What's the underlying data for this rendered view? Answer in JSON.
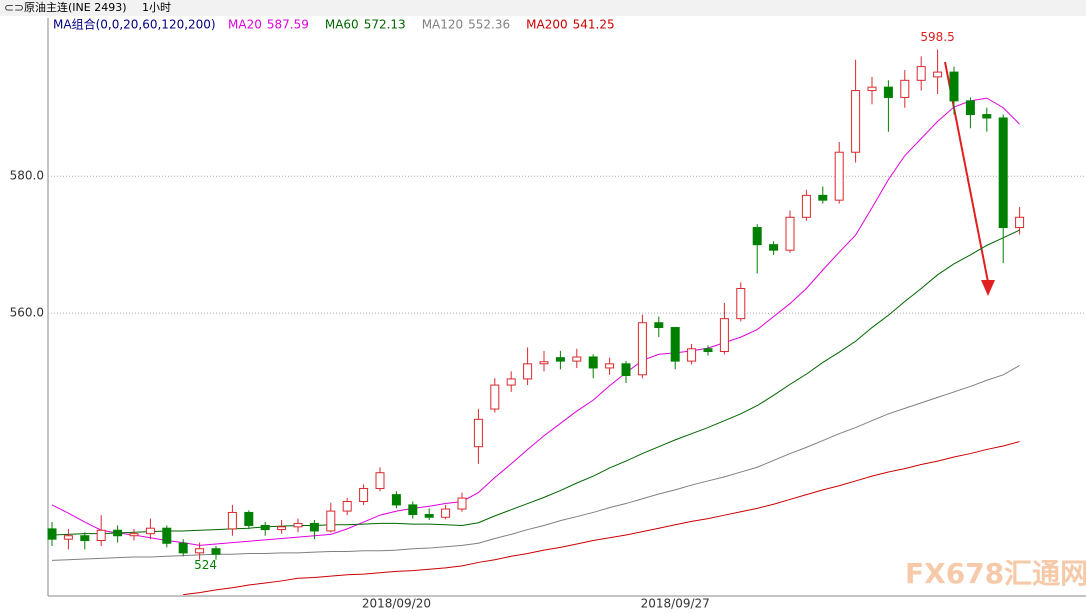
{
  "chart_data": {
    "type": "candlestick",
    "title": "原油主连(INE 2493)",
    "period": "1小时",
    "indicator": "MA组合(0,0,20,60,120,200)",
    "watermark": "FX678汇通网",
    "up_color": "#d9282e",
    "down_color": "#008000",
    "ylim": [
      518.7,
      603.1
    ],
    "yticks": [
      {
        "value": 560,
        "label": "560.0"
      },
      {
        "value": 580,
        "label": "580.0"
      }
    ],
    "grid": true,
    "categories": [
      null,
      null,
      null,
      null,
      null,
      null,
      null,
      null,
      null,
      null,
      null,
      null,
      null,
      null,
      null,
      null,
      null,
      null,
      null,
      null,
      null,
      "2018/09/20",
      null,
      null,
      null,
      null,
      null,
      null,
      null,
      null,
      null,
      null,
      null,
      null,
      null,
      null,
      null,
      null,
      "2018/09/27",
      null,
      null,
      null,
      null,
      null,
      null,
      null,
      null,
      null,
      null,
      null,
      null,
      null,
      null,
      null,
      null,
      null,
      null,
      null,
      null,
      null
    ],
    "candles": [
      [
        528.5,
        529.5,
        526.0,
        527.0
      ],
      [
        527.0,
        528.5,
        525.5,
        527.5
      ],
      [
        527.5,
        528.0,
        525.5,
        526.8
      ],
      [
        526.8,
        530.5,
        526.0,
        528.3
      ],
      [
        528.3,
        529.0,
        526.5,
        527.5
      ],
      [
        527.5,
        528.5,
        526.8,
        527.8
      ],
      [
        527.8,
        530.0,
        527.0,
        528.6
      ],
      [
        528.6,
        529.0,
        525.8,
        526.4
      ],
      [
        526.4,
        527.0,
        524.5,
        525.0
      ],
      [
        525.0,
        526.5,
        524.0,
        525.6
      ],
      [
        525.6,
        526.0,
        524.0,
        524.8
      ],
      [
        528.5,
        532.0,
        527.5,
        530.9
      ],
      [
        530.9,
        531.2,
        528.5,
        529.0
      ],
      [
        529.0,
        529.5,
        527.5,
        528.4
      ],
      [
        528.4,
        529.8,
        527.8,
        528.8
      ],
      [
        528.8,
        530.0,
        528.0,
        529.3
      ],
      [
        529.3,
        529.8,
        527.0,
        528.2
      ],
      [
        528.2,
        532.3,
        528.0,
        531.1
      ],
      [
        531.1,
        533.0,
        530.5,
        532.5
      ],
      [
        532.5,
        535.0,
        532.0,
        534.4
      ],
      [
        534.4,
        537.5,
        534.0,
        536.7
      ],
      [
        533.5,
        534.0,
        531.5,
        532.0
      ],
      [
        532.0,
        532.5,
        530.0,
        530.6
      ],
      [
        530.6,
        531.5,
        529.8,
        530.2
      ],
      [
        530.2,
        532.0,
        529.9,
        531.4
      ],
      [
        531.4,
        533.8,
        531.0,
        533.0
      ],
      [
        540.5,
        546.0,
        538.0,
        544.5
      ],
      [
        546.0,
        550.5,
        545.5,
        549.5
      ],
      [
        549.5,
        551.5,
        548.5,
        550.4
      ],
      [
        550.4,
        555.0,
        549.5,
        552.6
      ],
      [
        552.6,
        554.5,
        551.5,
        552.9
      ],
      [
        553.5,
        554.5,
        551.8,
        553.0
      ],
      [
        553.0,
        554.8,
        552.0,
        553.6
      ],
      [
        553.6,
        554.0,
        550.5,
        552.0
      ],
      [
        552.0,
        553.5,
        551.0,
        552.6
      ],
      [
        552.6,
        553.0,
        549.8,
        550.9
      ],
      [
        551.0,
        559.8,
        550.5,
        558.6
      ],
      [
        558.6,
        559.5,
        556.5,
        557.9
      ],
      [
        557.9,
        558.0,
        551.8,
        553.0
      ],
      [
        553.0,
        555.5,
        552.5,
        554.8
      ],
      [
        554.8,
        555.3,
        553.8,
        554.4
      ],
      [
        554.4,
        561.5,
        554.0,
        559.2
      ],
      [
        559.2,
        564.5,
        558.8,
        563.6
      ],
      [
        572.5,
        573.0,
        565.8,
        570.0
      ],
      [
        570.0,
        570.5,
        568.5,
        569.2
      ],
      [
        569.2,
        575.0,
        568.8,
        574.0
      ],
      [
        574.0,
        578.0,
        573.5,
        577.2
      ],
      [
        577.2,
        578.5,
        576.0,
        576.5
      ],
      [
        576.5,
        585.0,
        576.0,
        583.5
      ],
      [
        583.5,
        597.0,
        582.0,
        592.5
      ],
      [
        592.5,
        594.5,
        590.5,
        593.0
      ],
      [
        593.0,
        594.0,
        586.5,
        591.5
      ],
      [
        591.5,
        595.5,
        590.0,
        594.0
      ],
      [
        594.0,
        597.5,
        592.5,
        596.0
      ],
      [
        594.5,
        598.5,
        592.0,
        595.2
      ],
      [
        595.2,
        596.0,
        589.0,
        591.0
      ],
      [
        591.0,
        591.5,
        587.0,
        589.0
      ],
      [
        589.0,
        590.0,
        586.5,
        588.5
      ],
      [
        588.5,
        589.0,
        567.3,
        572.5
      ],
      [
        572.5,
        575.5,
        571.5,
        574.0
      ]
    ],
    "series": [
      {
        "name": "MA20",
        "color": "#e000e0",
        "values": [
          532.0,
          530.8,
          529.5,
          528.3,
          527.9,
          527.6,
          527.2,
          526.8,
          526.5,
          526.1,
          526.3,
          526.5,
          526.7,
          526.9,
          527.1,
          527.3,
          527.5,
          527.7,
          528.5,
          529.5,
          530.5,
          531.1,
          531.5,
          531.8,
          532.2,
          532.5,
          533.8,
          536.0,
          538.0,
          540.1,
          542.1,
          543.9,
          545.7,
          547.3,
          549.4,
          551.3,
          553.1,
          554.0,
          554.2,
          554.5,
          554.9,
          555.7,
          556.5,
          557.6,
          559.5,
          561.4,
          563.6,
          566.3,
          568.9,
          571.4,
          575.4,
          579.5,
          583.0,
          585.5,
          588.0,
          590.1,
          591.0,
          591.4,
          590.0,
          587.59
        ]
      },
      {
        "name": "MA60",
        "color": "#006600",
        "values": [
          527.6,
          527.7,
          527.8,
          527.8,
          527.9,
          528.0,
          528.1,
          528.2,
          528.2,
          528.3,
          528.4,
          528.5,
          528.6,
          528.8,
          528.9,
          529.0,
          529.0,
          529.1,
          529.1,
          529.2,
          529.3,
          529.3,
          529.2,
          529.2,
          529.1,
          529.0,
          529.4,
          530.4,
          531.3,
          532.2,
          533.1,
          534.1,
          535.2,
          536.2,
          537.4,
          538.4,
          539.5,
          540.5,
          541.5,
          542.4,
          543.3,
          544.3,
          545.3,
          546.5,
          548.0,
          549.6,
          551.1,
          552.8,
          554.3,
          555.9,
          557.9,
          559.7,
          561.7,
          563.6,
          565.6,
          567.2,
          568.5,
          569.9,
          571.0,
          572.13
        ]
      },
      {
        "name": "MA120",
        "color": "#808080",
        "values": [
          523.9,
          524.0,
          524.1,
          524.2,
          524.3,
          524.4,
          524.4,
          524.5,
          524.6,
          524.7,
          524.8,
          524.8,
          524.9,
          524.9,
          525.0,
          525.0,
          525.1,
          525.2,
          525.2,
          525.3,
          525.3,
          525.4,
          525.6,
          525.7,
          525.9,
          526.1,
          526.4,
          527.1,
          527.7,
          528.4,
          529.0,
          529.7,
          530.3,
          530.9,
          531.6,
          532.2,
          532.9,
          533.6,
          534.2,
          534.9,
          535.5,
          536.1,
          536.8,
          537.5,
          538.5,
          539.5,
          540.4,
          541.4,
          542.4,
          543.3,
          544.3,
          545.3,
          546.1,
          546.9,
          547.7,
          548.5,
          549.3,
          550.2,
          551.0,
          552.36
        ]
      },
      {
        "name": "MA200",
        "color": "#cc0000",
        "values": [
          null,
          null,
          null,
          null,
          null,
          null,
          null,
          null,
          518.9,
          519.2,
          519.6,
          519.9,
          520.3,
          520.6,
          520.9,
          521.3,
          521.4,
          521.6,
          521.8,
          521.9,
          522.1,
          522.3,
          522.4,
          522.6,
          522.8,
          523.1,
          523.6,
          524.0,
          524.5,
          524.9,
          525.4,
          525.8,
          526.3,
          526.8,
          527.2,
          527.6,
          528.1,
          528.6,
          529.1,
          529.6,
          530.0,
          530.5,
          531.0,
          531.5,
          532.1,
          532.8,
          533.5,
          534.2,
          534.8,
          535.5,
          536.2,
          536.8,
          537.3,
          537.9,
          538.4,
          539.0,
          539.5,
          540.1,
          540.6,
          541.25
        ]
      }
    ]
  }
}
